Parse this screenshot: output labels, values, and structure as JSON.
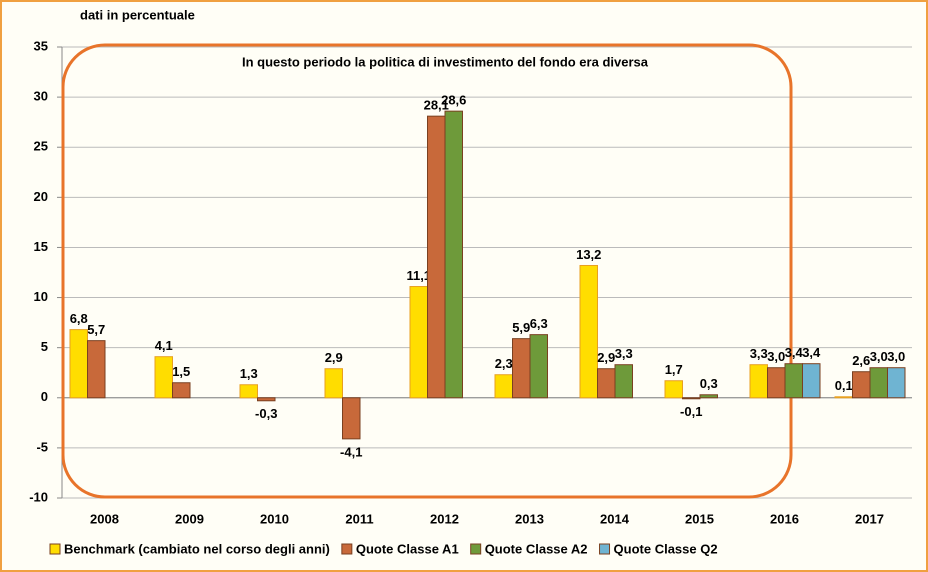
{
  "chart_data": {
    "type": "bar",
    "ylabel": "dati in percentuale",
    "annotation": "In questo periodo la politica di investimento del fondo era diversa",
    "categories": [
      "2008",
      "2009",
      "2010",
      "2011",
      "2012",
      "2013",
      "2014",
      "2015",
      "2016",
      "2017"
    ],
    "series": [
      {
        "name": "Benchmark (cambiato nel corso degli anni)",
        "color": "#ffdd00",
        "values": [
          6.8,
          4.1,
          1.3,
          2.9,
          11.1,
          2.3,
          13.2,
          1.7,
          3.3,
          0.1
        ],
        "value_labels": [
          "6,8",
          "4,1",
          "1,3",
          "2,9",
          "11,1",
          "2,3",
          "13,2",
          "1,7",
          "3,3",
          "0,1"
        ]
      },
      {
        "name": "Quote Classe A1",
        "color": "#c8693a",
        "values": [
          5.7,
          1.5,
          -0.3,
          -4.1,
          28.1,
          5.9,
          2.9,
          -0.1,
          3.0,
          2.6
        ],
        "value_labels": [
          "5,7",
          "1,5",
          "-0,3",
          "-4,1",
          "28,1",
          "5,9",
          "2,9",
          "-0,1",
          "3,0",
          "2,6"
        ]
      },
      {
        "name": "Quote Classe A2",
        "color": "#6e9a3a",
        "values": [
          null,
          null,
          null,
          null,
          28.6,
          6.3,
          3.3,
          0.3,
          3.4,
          3.0
        ],
        "value_labels": [
          null,
          null,
          null,
          null,
          "28,6",
          "6,3",
          "3,3",
          "0,3",
          "3,4",
          "3,0"
        ]
      },
      {
        "name": "Quote Classe Q2",
        "color": "#6fb4d2",
        "values": [
          null,
          null,
          null,
          null,
          null,
          null,
          null,
          null,
          3.4,
          3.0
        ],
        "value_labels": [
          null,
          null,
          null,
          null,
          null,
          null,
          null,
          null,
          "3,4",
          "3,0"
        ]
      }
    ],
    "ylim": [
      -10,
      35
    ],
    "yticks": [
      -10,
      -5,
      0,
      5,
      10,
      15,
      20,
      25,
      30,
      35
    ],
    "grid": true,
    "legend": "bottom"
  }
}
